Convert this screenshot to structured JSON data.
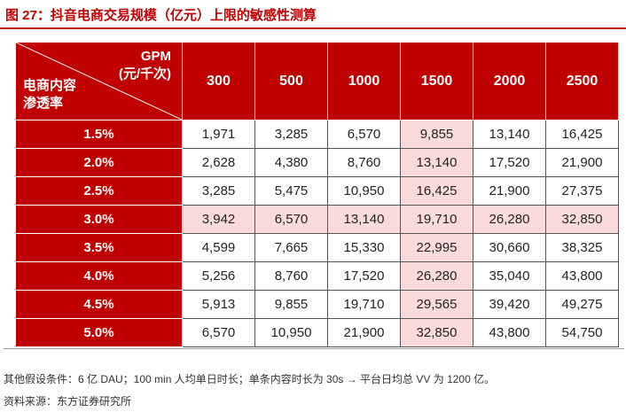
{
  "title": "图 27：抖音电商交易规模（亿元）上限的敏感性测算",
  "table": {
    "corner_col_label_line1": "GPM",
    "corner_col_label_line2": "(元/千次)",
    "corner_row_label_line1": "电商内容",
    "corner_row_label_line2": "渗透率",
    "columns": [
      "300",
      "500",
      "1000",
      "1500",
      "2000",
      "2500"
    ],
    "rows": [
      {
        "label": "1.5%",
        "values": [
          "1,971",
          "3,285",
          "6,570",
          "9,855",
          "13,140",
          "16,425"
        ]
      },
      {
        "label": "2.0%",
        "values": [
          "2,628",
          "4,380",
          "8,760",
          "13,140",
          "17,520",
          "21,900"
        ]
      },
      {
        "label": "2.5%",
        "values": [
          "3,285",
          "5,475",
          "10,950",
          "16,425",
          "21,900",
          "27,375"
        ]
      },
      {
        "label": "3.0%",
        "values": [
          "3,942",
          "6,570",
          "13,140",
          "19,710",
          "26,280",
          "32,850"
        ]
      },
      {
        "label": "3.5%",
        "values": [
          "4,599",
          "7,665",
          "15,330",
          "22,995",
          "30,660",
          "38,325"
        ]
      },
      {
        "label": "4.0%",
        "values": [
          "5,256",
          "8,760",
          "17,520",
          "26,280",
          "35,040",
          "43,800"
        ]
      },
      {
        "label": "4.5%",
        "values": [
          "5,913",
          "9,855",
          "19,710",
          "29,565",
          "39,420",
          "49,275"
        ]
      },
      {
        "label": "5.0%",
        "values": [
          "6,570",
          "10,950",
          "21,900",
          "32,850",
          "43,800",
          "54,750"
        ]
      }
    ]
  },
  "footnote": "其他假设条件：6 亿 DAU；100 min 人均单日时长；单条内容时长为 30s → 平台日均总 VV 为 1200 亿。",
  "source": "资料来源：东方证券研究所",
  "colors": {
    "accent": "#c00000",
    "highlight": "#fbdada"
  }
}
